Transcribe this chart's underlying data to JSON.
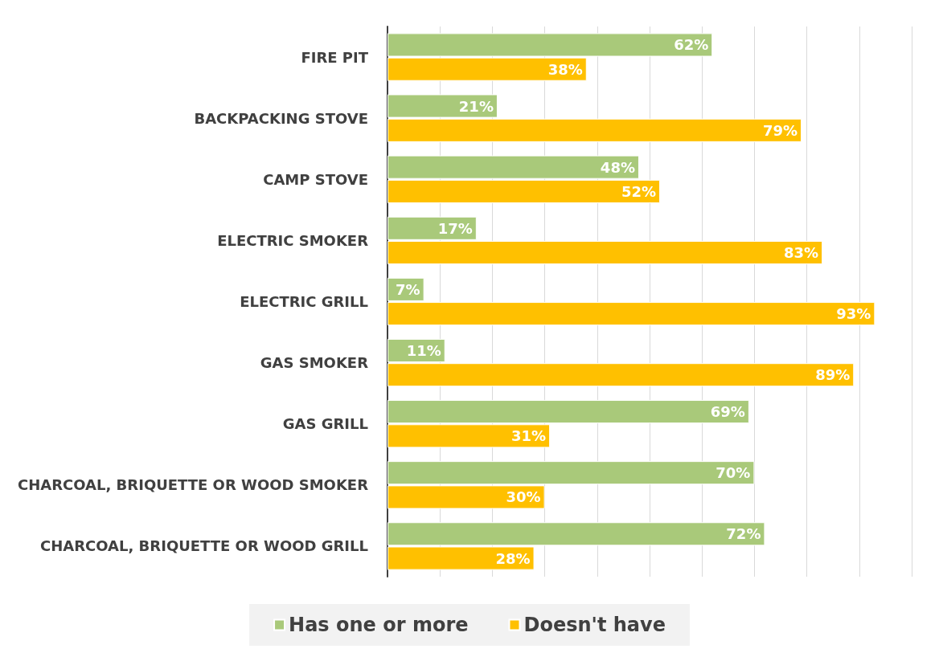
{
  "chart_data": {
    "type": "bar",
    "orientation": "horizontal",
    "categories": [
      "FIRE PIT",
      "BACKPACKING STOVE",
      "CAMP STOVE",
      "ELECTRIC SMOKER",
      "ELECTRIC GRILL",
      "GAS SMOKER",
      "GAS GRILL",
      "CHARCOAL, BRIQUETTE OR WOOD SMOKER",
      "CHARCOAL, BRIQUETTE OR WOOD GRILL"
    ],
    "series": [
      {
        "name": "Has one or more",
        "color": "#a9c97a",
        "values": [
          62,
          21,
          48,
          17,
          7,
          11,
          69,
          70,
          72
        ],
        "value_labels": [
          "62%",
          "21%",
          "48%",
          "17%",
          "7%",
          "11%",
          "69%",
          "70%",
          "72%"
        ]
      },
      {
        "name": "Doesn't have",
        "color": "#ffc000",
        "values": [
          38,
          79,
          52,
          83,
          93,
          89,
          31,
          30,
          28
        ],
        "value_labels": [
          "38%",
          "79%",
          "52%",
          "83%",
          "93%",
          "89%",
          "31%",
          "30%",
          "28%"
        ]
      }
    ],
    "xlim": [
      0,
      100
    ],
    "xticks": [
      {
        "value": 0,
        "label": null
      },
      {
        "value": 10,
        "label": null
      },
      {
        "value": 20,
        "label": null
      },
      {
        "value": 30,
        "label": null
      },
      {
        "value": 40,
        "label": null
      },
      {
        "value": 50,
        "label": null
      },
      {
        "value": 60,
        "label": null
      },
      {
        "value": 70,
        "label": null
      },
      {
        "value": 80,
        "label": null
      },
      {
        "value": 90,
        "label": null
      },
      {
        "value": 100,
        "label": null
      }
    ],
    "tick_labels": "y",
    "grid": "x",
    "legend": "bottom"
  }
}
